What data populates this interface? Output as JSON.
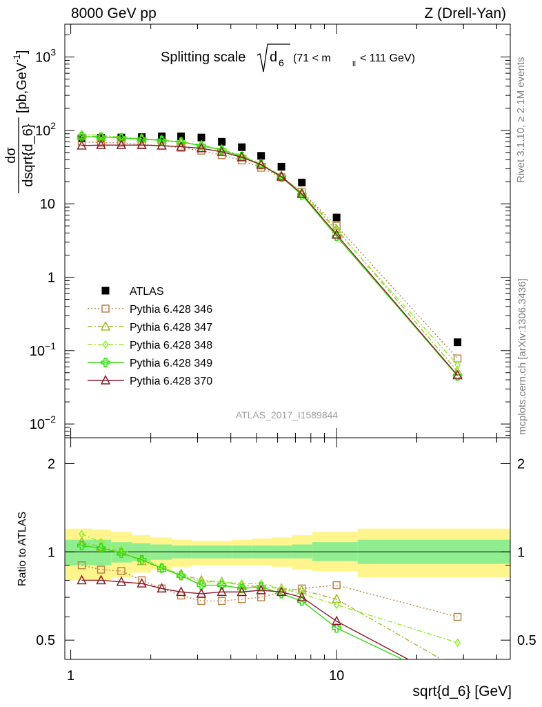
{
  "header": {
    "left": "8000 GeV pp",
    "right": "Z (Drell-Yan)"
  },
  "side_labels": {
    "rivet": "Rivet 3.1.10, ≥ 2.1M events",
    "mcplots": "mcplots.cern.ch [arXiv:1306.3436]"
  },
  "chart_data": [
    {
      "type": "scatter",
      "title_main": "Splitting scale",
      "title_symbol": "√d",
      "title_symbol_sub": "6",
      "title_range": "(71 < m",
      "title_range_sub": "ll",
      "title_range_end": "< 111 GeV)",
      "ylabel_num": "dσ",
      "ylabel_den": "dsqrt{d_6}",
      "ylabel_unit": "[pb,GeV",
      "ylabel_unit_sup": "-1",
      "ylabel_unit_end": "]",
      "xscale": "log",
      "yscale": "log",
      "xlim": [
        0.95,
        45
      ],
      "ylim": [
        0.0065,
        2800
      ],
      "y_ticks": [
        "10^3",
        "10^2",
        "10",
        "1",
        "10^-1",
        "10^-2"
      ],
      "watermark": "ATLAS_2017_I1589844",
      "legend_position": "lower-left",
      "series": [
        {
          "name": "ATLAS",
          "color": "#000000",
          "marker": "filled-square",
          "line": "none",
          "x": [
            1.1,
            1.3,
            1.55,
            1.85,
            2.2,
            2.6,
            3.1,
            3.7,
            4.4,
            5.2,
            6.2,
            7.4,
            10.0,
            28.5
          ],
          "y": [
            78,
            79,
            80,
            81,
            83,
            83,
            80,
            70,
            59,
            45,
            32,
            19.5,
            6.5,
            0.13
          ]
        },
        {
          "name": "Pythia 6.428 346",
          "color": "#b8864b",
          "marker": "open-square",
          "line": "dotted",
          "x": [
            1.1,
            1.3,
            1.55,
            1.85,
            2.2,
            2.6,
            3.1,
            3.7,
            4.4,
            5.2,
            6.2,
            7.4,
            10.0,
            28.5
          ],
          "y": [
            70,
            68,
            68,
            64,
            62,
            58,
            53,
            46,
            39,
            31,
            23,
            14.5,
            5.0,
            0.078
          ]
        },
        {
          "name": "Pythia 6.428 347",
          "color": "#a8b832",
          "marker": "open-triangle",
          "line": "dashdot",
          "x": [
            1.1,
            1.3,
            1.55,
            1.85,
            2.2,
            2.6,
            3.1,
            3.7,
            4.4,
            5.2,
            6.2,
            7.4,
            10.0,
            28.5
          ],
          "y": [
            84,
            82,
            80,
            77,
            74,
            70,
            63,
            55,
            45,
            35,
            24,
            14.2,
            4.5,
            0.052
          ]
        },
        {
          "name": "Pythia 6.428 348",
          "color": "#90ee30",
          "marker": "open-diamond",
          "line": "dashdot",
          "x": [
            1.1,
            1.3,
            1.55,
            1.85,
            2.2,
            2.6,
            3.1,
            3.7,
            4.4,
            5.2,
            6.2,
            7.4,
            10.0,
            28.5
          ],
          "y": [
            90,
            85,
            81,
            77,
            74,
            69,
            63,
            55,
            46,
            35,
            24,
            14.0,
            4.3,
            0.064
          ]
        },
        {
          "name": "Pythia 6.428 349",
          "color": "#33dd11",
          "marker": "open-cross",
          "line": "solid",
          "x": [
            1.1,
            1.3,
            1.55,
            1.85,
            2.2,
            2.6,
            3.1,
            3.7,
            4.4,
            5.2,
            6.2,
            7.4,
            10.0,
            28.5
          ],
          "y": [
            82,
            81,
            79,
            76,
            73,
            69,
            62,
            54,
            44,
            34,
            23,
            13.2,
            3.6,
            0.045
          ]
        },
        {
          "name": "Pythia 6.428 370",
          "color": "#8b1a2a",
          "marker": "open-triangle",
          "line": "solid",
          "x": [
            1.1,
            1.3,
            1.55,
            1.85,
            2.2,
            2.6,
            3.1,
            3.7,
            4.4,
            5.2,
            6.2,
            7.4,
            10.0,
            28.5
          ],
          "y": [
            62,
            63,
            63,
            63,
            62,
            60,
            57,
            51,
            43,
            34,
            23.5,
            13.6,
            3.8,
            0.046
          ]
        }
      ]
    },
    {
      "type": "line",
      "ylabel": "Ratio to ATLAS",
      "xlabel": "sqrt{d_6} [GeV]",
      "xscale": "log",
      "yscale": "log",
      "xlim": [
        0.95,
        45
      ],
      "ylim": [
        0.43,
        2.45
      ],
      "y_ticks": [
        "0.5",
        "1",
        "2"
      ],
      "x_ticks": [
        "1",
        "10"
      ],
      "reference_line": 1.0,
      "bands": {
        "outer_color": "#fff58c",
        "inner_color": "#90ee90",
        "edges": [
          0.95,
          1.2,
          1.42,
          1.7,
          2.0,
          2.4,
          2.85,
          3.4,
          4.05,
          4.8,
          5.7,
          6.8,
          8.1,
          12.0,
          45
        ],
        "outer_lo": [
          0.8,
          0.8,
          0.82,
          0.85,
          0.87,
          0.89,
          0.9,
          0.9,
          0.9,
          0.9,
          0.89,
          0.87,
          0.86,
          0.82
        ],
        "outer_hi": [
          1.2,
          1.19,
          1.17,
          1.14,
          1.12,
          1.1,
          1.09,
          1.09,
          1.1,
          1.11,
          1.12,
          1.14,
          1.17,
          1.2
        ],
        "inner_lo": [
          0.9,
          0.9,
          0.92,
          0.93,
          0.94,
          0.95,
          0.95,
          0.95,
          0.95,
          0.95,
          0.95,
          0.95,
          0.93,
          0.91
        ],
        "inner_hi": [
          1.1,
          1.1,
          1.08,
          1.07,
          1.06,
          1.05,
          1.05,
          1.05,
          1.05,
          1.05,
          1.05,
          1.06,
          1.08,
          1.1
        ]
      },
      "series": [
        {
          "name": "Pythia 6.428 346",
          "color": "#b8864b",
          "marker": "open-square",
          "line": "dotted",
          "x": [
            1.1,
            1.3,
            1.55,
            1.85,
            2.2,
            2.6,
            3.1,
            3.7,
            4.4,
            5.2,
            6.2,
            7.4,
            10.0,
            28.5
          ],
          "y": [
            0.9,
            0.87,
            0.86,
            0.8,
            0.75,
            0.71,
            0.68,
            0.68,
            0.69,
            0.7,
            0.73,
            0.75,
            0.77,
            0.6
          ]
        },
        {
          "name": "Pythia 6.428 347",
          "color": "#a8b832",
          "marker": "open-triangle",
          "line": "dashdot",
          "x": [
            1.1,
            1.3,
            1.55,
            1.85,
            2.2,
            2.6,
            3.1,
            3.7,
            4.4,
            5.2,
            6.2,
            7.4,
            10.0,
            28.5
          ],
          "y": [
            1.08,
            1.04,
            1.0,
            0.93,
            0.88,
            0.84,
            0.8,
            0.79,
            0.77,
            0.76,
            0.75,
            0.74,
            0.69,
            0.4
          ]
        },
        {
          "name": "Pythia 6.428 348",
          "color": "#90ee30",
          "marker": "open-diamond",
          "line": "dashdot",
          "x": [
            1.1,
            1.3,
            1.55,
            1.85,
            2.2,
            2.6,
            3.1,
            3.7,
            4.4,
            5.2,
            6.2,
            7.4,
            10.0,
            28.5
          ],
          "y": [
            1.15,
            1.08,
            1.02,
            0.95,
            0.89,
            0.83,
            0.79,
            0.79,
            0.78,
            0.78,
            0.75,
            0.72,
            0.66,
            0.49
          ]
        },
        {
          "name": "Pythia 6.428 349",
          "color": "#33dd11",
          "marker": "open-cross",
          "line": "solid",
          "x": [
            1.1,
            1.3,
            1.55,
            1.85,
            2.2,
            2.6,
            3.1,
            3.7,
            4.4,
            5.2,
            6.2,
            7.4,
            10.0,
            28.5
          ],
          "y": [
            1.05,
            1.03,
            0.99,
            0.94,
            0.88,
            0.83,
            0.77,
            0.77,
            0.75,
            0.76,
            0.72,
            0.68,
            0.55,
            0.35
          ]
        },
        {
          "name": "Pythia 6.428 370",
          "color": "#8b1a2a",
          "marker": "open-triangle",
          "line": "solid",
          "x": [
            1.1,
            1.3,
            1.55,
            1.85,
            2.2,
            2.6,
            3.1,
            3.7,
            4.4,
            5.2,
            6.2,
            7.4,
            10.0,
            28.5
          ],
          "y": [
            0.8,
            0.8,
            0.79,
            0.78,
            0.75,
            0.73,
            0.72,
            0.73,
            0.73,
            0.74,
            0.73,
            0.7,
            0.58,
            0.35
          ]
        }
      ]
    }
  ]
}
